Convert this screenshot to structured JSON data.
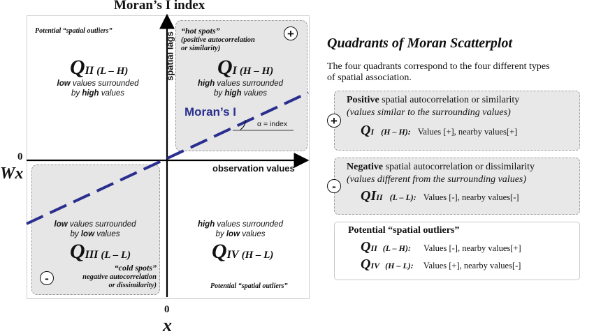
{
  "title": "Moran’s I index",
  "axes": {
    "y_label": "spatial lags",
    "x_label": "observation values",
    "y_origin": "0",
    "x_origin": "0",
    "wx": "Wx",
    "x": "x"
  },
  "q1": {
    "tag_title": "“hot spots”",
    "tag_sub1": "(positive autocorrelation",
    "tag_sub2": "or similarity)",
    "label": "Q",
    "roman": "I",
    "code": "(H – H)",
    "desc_l1a": "high",
    "desc_l1b": " values surrounded",
    "desc_l2a": "by ",
    "desc_l2b": "high",
    "desc_l2c": " values",
    "sign": "+"
  },
  "q2": {
    "caption": "Potential “spatial outliers”",
    "label": "Q",
    "roman": "II",
    "code": "(L – H)",
    "desc_l1a": "low",
    "desc_l1b": " values surrounded",
    "desc_l2a": "by ",
    "desc_l2b": "high",
    "desc_l2c": " values"
  },
  "q3": {
    "desc_l1a": "low",
    "desc_l1b": " values surrounded",
    "desc_l2a": "by ",
    "desc_l2b": "low",
    "desc_l2c": " values",
    "label": "Q",
    "roman": "III",
    "code": "(L – L)",
    "tag_title": "“cold spots”",
    "tag_sub1": "negative autocorrelation",
    "tag_sub2": "or dissimilarity)",
    "sign": "-"
  },
  "q4": {
    "desc_l1a": "high",
    "desc_l1b": " values surrounded",
    "desc_l2a": "by ",
    "desc_l2b": "low",
    "desc_l2c": " values",
    "label": "Q",
    "roman": "IV",
    "code": "(H – L)",
    "caption": "Potential “spatial outliers”"
  },
  "moran_line": {
    "label": "Moran’s I",
    "alpha": "α = index",
    "color": "#2a2f8f"
  },
  "legend": {
    "heading": "Quadrants of Moran Scatterplot",
    "intro_l1": "The four quadrants correspond to the four different types",
    "intro_l2": "of spatial association.",
    "positive": {
      "bold": "Positive",
      "rest": " spatial autocorrelation or similarity",
      "italic": "(values similar to the surrounding values)",
      "q": "Q",
      "roman": "I",
      "code": "(H – H):",
      "values": "Values [+], nearby values[+]",
      "sign": "+"
    },
    "negative": {
      "bold": "Negative",
      "rest": " spatial autocorrelation or dissimilarity",
      "italic": "(values different from the surrounding values)",
      "q": "QI",
      "roman": "II",
      "code": "(L – L):",
      "values": "Values [-], nearby values[-]",
      "sign": "-"
    },
    "outliers": {
      "title": "Potential “spatial outliers”",
      "row1_q": "Q",
      "row1_roman": "II",
      "row1_code": "(L – H):",
      "row1_values": "Values [-], nearby values[+]",
      "row2_q": "Q",
      "row2_roman": "IV",
      "row2_code": "(H – L):",
      "row2_values": "Values [+], nearby values[-]"
    }
  }
}
